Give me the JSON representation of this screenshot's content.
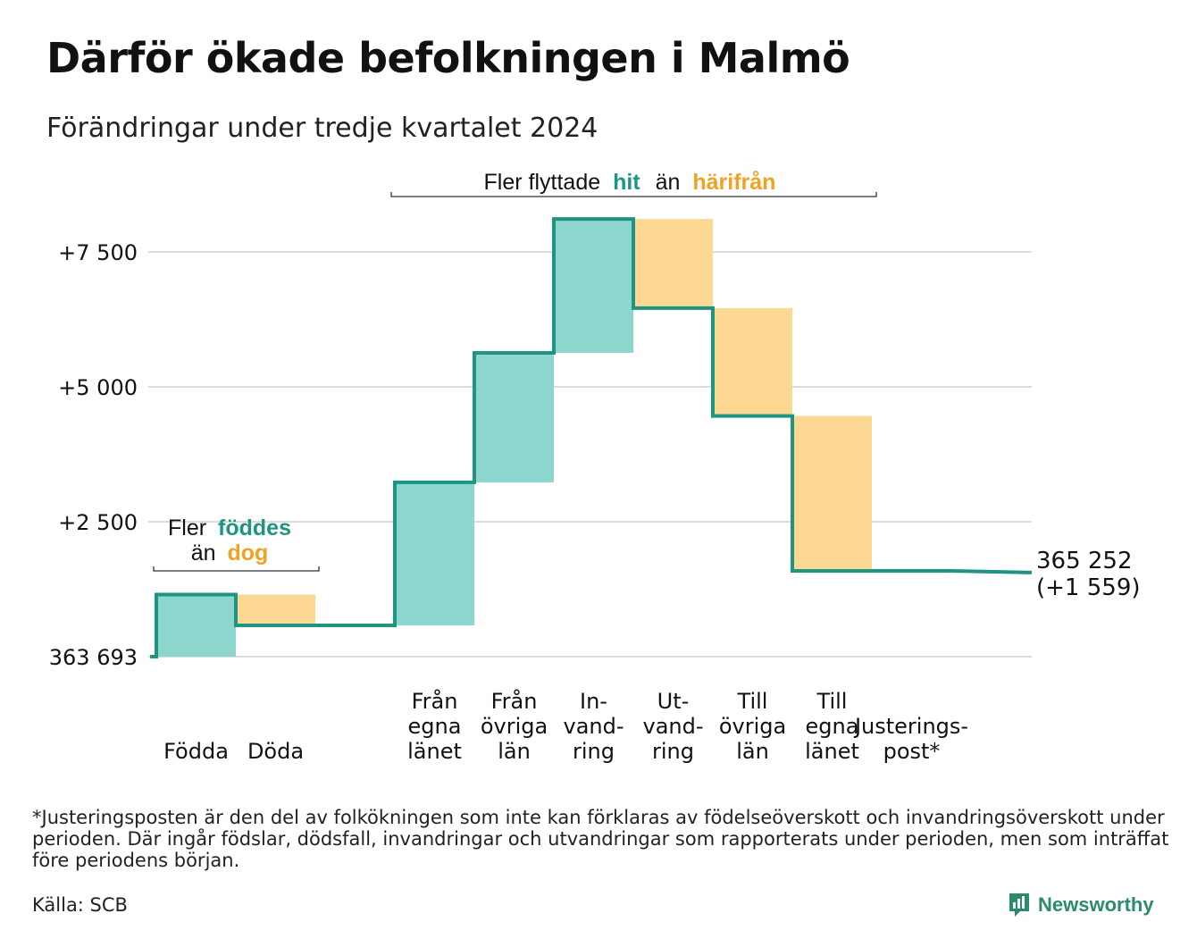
{
  "header": {
    "title": "Därför ökade befolkningen i Malmö",
    "subtitle": "Förändringar under tredje kvartalet 2024"
  },
  "colors": {
    "increase": "#8dd6cd",
    "decrease": "#fcd893",
    "line": "#1e9482",
    "teal_text": "#1e9482",
    "orange_text": "#f0a224",
    "grid": "#dcdcdc"
  },
  "annotations": {
    "births_bracket": {
      "line1_prefix": "Fler",
      "line1_highlight": "föddes",
      "line2_prefix": "än",
      "line2_highlight": "dog"
    },
    "migration_bracket": {
      "prefix": "Fler flyttade",
      "highlight1": "hit",
      "middle": "än",
      "highlight2": "härifrån"
    },
    "end_value": "365 252",
    "end_change": "(+1 559)"
  },
  "chart_data": {
    "type": "waterfall",
    "baseline_label": "363 693",
    "baseline_value": 0,
    "end_value": 1559,
    "categories": [
      {
        "label": [
          "Födda"
        ],
        "delta": 1150
      },
      {
        "label": [
          "Döda"
        ],
        "delta": -570
      },
      {
        "label": [],
        "delta": 0
      },
      {
        "label": [
          "Från",
          "egna",
          "länet"
        ],
        "delta": 2650
      },
      {
        "label": [
          "Från",
          "övriga",
          "län"
        ],
        "delta": 2400
      },
      {
        "label": [
          "In-",
          "vand-",
          "ring"
        ],
        "delta": 2480
      },
      {
        "label": [
          "Ut-",
          "vand-",
          "ring"
        ],
        "delta": -1650
      },
      {
        "label": [
          "Till",
          "övriga",
          "län"
        ],
        "delta": -2000
      },
      {
        "label": [
          "Till",
          "egna",
          "länet"
        ],
        "delta": -2870
      },
      {
        "label": [
          "Justerings-",
          "post*"
        ],
        "delta": 0
      }
    ],
    "y_ticks": [
      {
        "value": 0,
        "label": "363 693"
      },
      {
        "value": 2500,
        "label": "+2 500"
      },
      {
        "value": 5000,
        "label": "+5 000"
      },
      {
        "value": 7500,
        "label": "+7 500"
      }
    ],
    "ylim": [
      0,
      8000
    ]
  },
  "footer": {
    "footnote": "*Justeringsposten är den del av folkökningen som inte kan förklaras av födelseöverskott och invandringsöverskott under perioden. Där ingår födslar, dödsfall, invandringar och utvandringar som rapporterats under perioden, men som inträffat före periodens början.",
    "source": "Källa: SCB",
    "brand": "Newsworthy"
  }
}
